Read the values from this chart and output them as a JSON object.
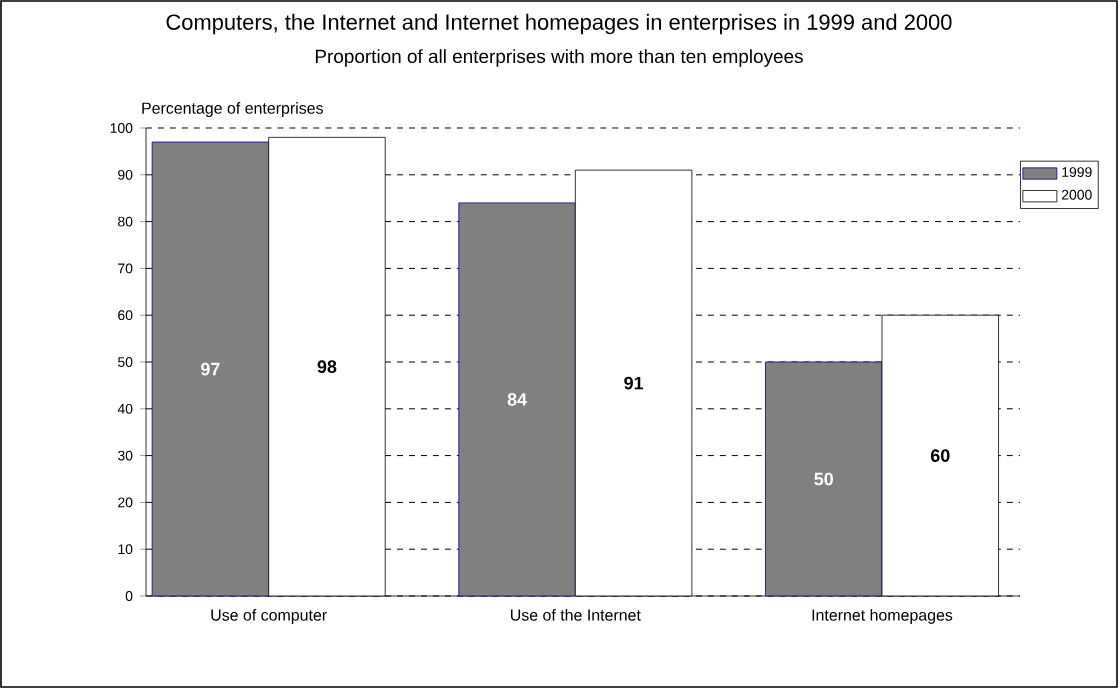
{
  "chart_data": {
    "type": "bar",
    "title": "Computers, the Internet and Internet homepages in enterprises in 1999 and 2000",
    "subtitle": "Proportion of all enterprises with more than ten employees",
    "ylabel": "Percentage of enterprises",
    "categories": [
      "Use of computer",
      "Use of the Internet",
      "Internet homepages"
    ],
    "series": [
      {
        "name": "1999",
        "color": "#808080",
        "values": [
          97,
          84,
          50
        ]
      },
      {
        "name": "2000",
        "color": "#ffffff",
        "values": [
          98,
          91,
          60
        ]
      }
    ],
    "ylim": [
      0,
      100
    ],
    "yticks": [
      0,
      10,
      20,
      30,
      40,
      50,
      60,
      70,
      80,
      90,
      100
    ],
    "grid": "y",
    "legend": "top right",
    "data_labels": true
  }
}
